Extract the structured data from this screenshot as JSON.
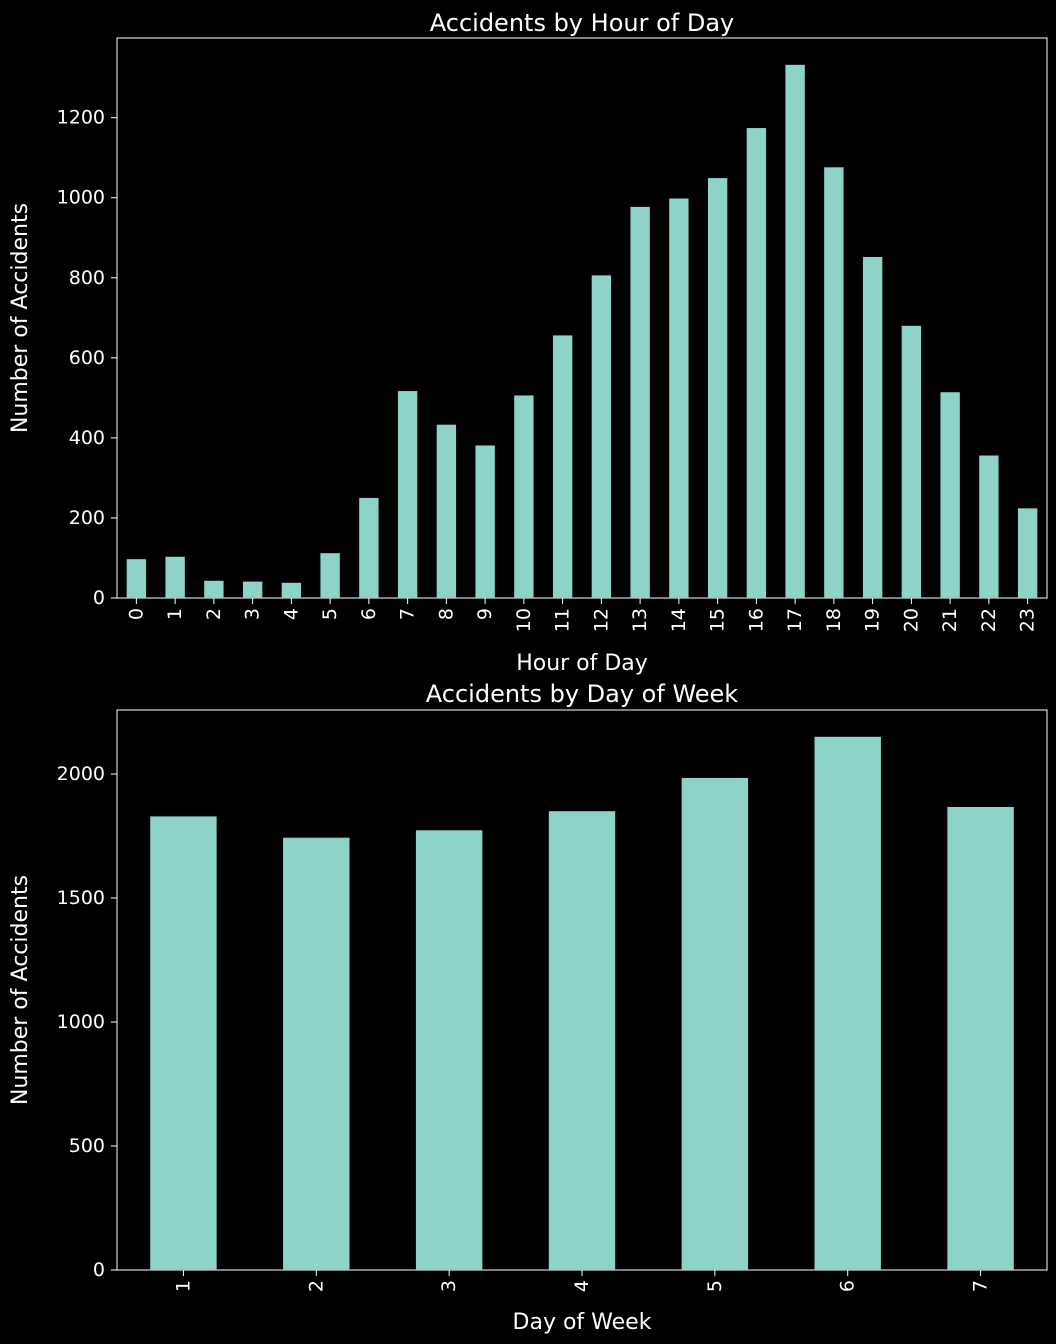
{
  "colors": {
    "background": "#000000",
    "bar": "#8dd3c7",
    "axes": "#ffffff",
    "text": "#ffffff"
  },
  "chart_data": [
    {
      "type": "bar",
      "title": "Accidents by Hour of Day",
      "xlabel": "Hour of Day",
      "ylabel": "Number of Accidents",
      "categories": [
        "0",
        "1",
        "2",
        "3",
        "4",
        "5",
        "6",
        "7",
        "8",
        "9",
        "10",
        "11",
        "12",
        "13",
        "14",
        "15",
        "16",
        "17",
        "18",
        "19",
        "20",
        "21",
        "22",
        "23"
      ],
      "values": [
        97,
        103,
        43,
        41,
        38,
        112,
        250,
        517,
        433,
        381,
        506,
        656,
        806,
        977,
        998,
        1049,
        1174,
        1332,
        1076,
        852,
        680,
        514,
        356,
        224
      ],
      "yticks": [
        0,
        200,
        400,
        600,
        800,
        1000,
        1200
      ],
      "ylim": [
        0,
        1399
      ],
      "xtick_rotation": 90,
      "grid": false,
      "legend": false
    },
    {
      "type": "bar",
      "title": "Accidents by Day of Week",
      "xlabel": "Day of Week",
      "ylabel": "Number of Accidents",
      "categories": [
        "1",
        "2",
        "3",
        "4",
        "5",
        "6",
        "7"
      ],
      "values": [
        1829,
        1743,
        1773,
        1850,
        1984,
        2150,
        1867
      ],
      "yticks": [
        0,
        500,
        1000,
        1500,
        2000
      ],
      "ylim": [
        0,
        2258
      ],
      "xtick_rotation": 90,
      "grid": false,
      "legend": false
    }
  ]
}
